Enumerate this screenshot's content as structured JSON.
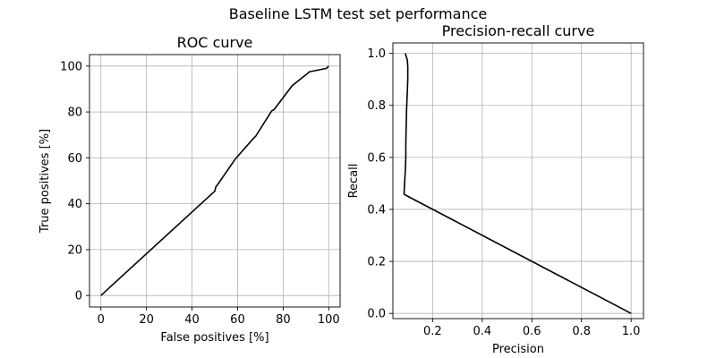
{
  "figure": {
    "title": "Baseline LSTM test set performance"
  },
  "chart_data": [
    {
      "type": "line",
      "title": "ROC curve",
      "xlabel": "False positives [%]",
      "ylabel": "True positives [%]",
      "xlim": [
        -5,
        105
      ],
      "ylim": [
        -5,
        105
      ],
      "xticks": [
        0,
        20,
        40,
        60,
        80,
        100
      ],
      "yticks": [
        0,
        20,
        40,
        60,
        80,
        100
      ],
      "grid": true,
      "line_color": "#000000",
      "series": [
        {
          "x": [
            0,
            50,
            50.5,
            51,
            59,
            67,
            67.5,
            68,
            75,
            76,
            84,
            91,
            91.5,
            99,
            99.5,
            100
          ],
          "y": [
            0,
            45.5,
            47.5,
            48,
            59.5,
            68.5,
            69,
            69.5,
            80.5,
            81,
            91.5,
            97,
            97.5,
            99,
            99.5,
            100
          ]
        }
      ]
    },
    {
      "type": "line",
      "title": "Precision-recall curve",
      "xlabel": "Precision",
      "ylabel": "Recall",
      "xlim": [
        0.04,
        1.05
      ],
      "ylim": [
        -0.02,
        1.04
      ],
      "xticks": [
        0.2,
        0.4,
        0.6,
        0.8,
        1.0
      ],
      "yticks": [
        0.0,
        0.2,
        0.4,
        0.6,
        0.8,
        1.0
      ],
      "tick_labels_x": [
        "0.2",
        "0.4",
        "0.6",
        "0.8",
        "1.0"
      ],
      "tick_labels_y": [
        "0.0",
        "0.2",
        "0.4",
        "0.6",
        "0.8",
        "1.0"
      ],
      "grid": true,
      "line_color": "#000000",
      "series": [
        {
          "x": [
            1.0,
            0.085,
            0.086,
            0.09,
            0.092,
            0.092,
            0.093,
            0.095,
            0.098,
            0.1,
            0.1,
            0.098,
            0.093,
            0.09
          ],
          "y": [
            0.0,
            0.458,
            0.48,
            0.55,
            0.6,
            0.65,
            0.7,
            0.78,
            0.85,
            0.9,
            0.95,
            0.975,
            0.99,
            1.0
          ]
        }
      ]
    }
  ]
}
